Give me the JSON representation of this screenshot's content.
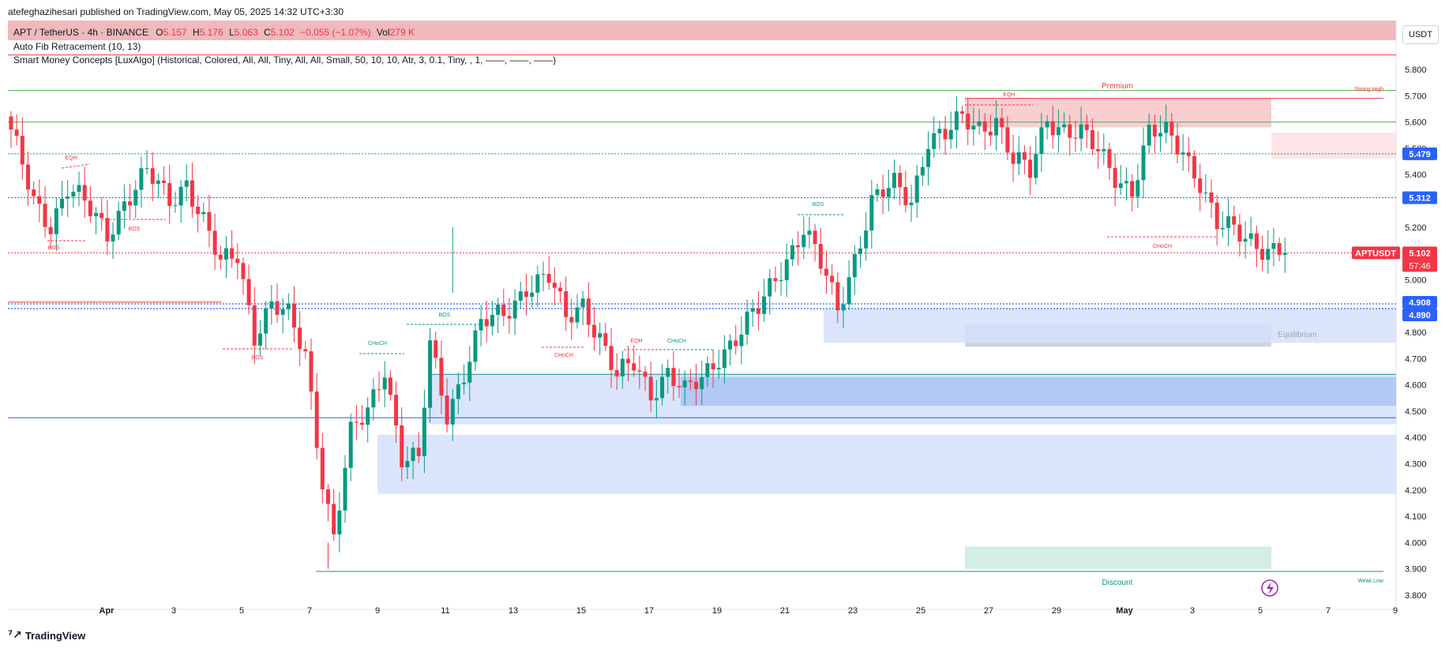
{
  "header": {
    "publish_line": "atefeghazihesari published on TradingView.com, May 05, 2025 14:32 UTC+3:30",
    "symbol_line": "APT / TetherUS · 4h · BINANCE",
    "ohlc": {
      "o_label": "O",
      "o": "5.157",
      "h_label": "H",
      "h": "5.176",
      "l_label": "L",
      "l": "5.063",
      "c_label": "C",
      "c": "5.102",
      "change": "−0.055 (−1.07%)",
      "vol_label": "Vol",
      "vol": "279 K"
    },
    "indicator_1": "Auto Fib Retracement (10, 13)",
    "indicator_2": "Smart Money Concepts [LuxAlgo] (Historical, Colored, All, All, Tiny, All, All, Small, 50, 10, 10, Atr, 3, 0.1, Tiny, , 1, ——, ——, ——)"
  },
  "price_axis": {
    "unit": "USDT",
    "ticks": [
      "5.800",
      "5.700",
      "5.600",
      "5.500",
      "5.400",
      "5.300",
      "5.200",
      "5.100",
      "5.000",
      "4.900",
      "4.800",
      "4.700",
      "4.600",
      "4.500",
      "4.400",
      "4.300",
      "4.200",
      "4.100",
      "4.000",
      "3.900",
      "3.800"
    ],
    "tags": [
      {
        "text": "5.479",
        "price": 5.479,
        "color": "#2962ff"
      },
      {
        "text": "5.312",
        "price": 5.312,
        "color": "#2962ff"
      },
      {
        "text": "4.908",
        "price": 4.908,
        "color": "#2962ff"
      },
      {
        "text": "4.890",
        "price": 4.89,
        "color": "#2962ff"
      }
    ],
    "last_price": {
      "symbol": "APTUSDT",
      "price_text": "5.102",
      "countdown": "57:46",
      "color": "#f23645"
    }
  },
  "time_axis": {
    "labels": [
      "Apr",
      "3",
      "5",
      "7",
      "9",
      "11",
      "13",
      "15",
      "17",
      "19",
      "21",
      "23",
      "25",
      "27",
      "29",
      "May",
      "3",
      "5",
      "7",
      "9"
    ]
  },
  "annotations": {
    "premium": "Premium",
    "equilibrium": "Equilibrium",
    "discount": "Discount",
    "strong_high": "Strong High",
    "weak_low": "Weak Low",
    "eqh": "EQH",
    "bos": "BOS",
    "choch": "CHoCH"
  },
  "colors": {
    "bull": "#089981",
    "bear": "#f23645",
    "blue": "#2962ff",
    "premium_zone": "#f7c5c9",
    "discount_zone": "#b2dfd6",
    "order_block": "#aac4f5"
  },
  "footer": {
    "brand": "TradingView"
  },
  "chart_data": {
    "type": "candlestick",
    "symbol": "APT / TetherUS",
    "timeframe": "4h",
    "exchange": "BINANCE",
    "ylim": [
      3.78,
      5.86
    ],
    "anchors_close": [
      [
        0,
        5.55
      ],
      [
        4,
        5.3
      ],
      [
        7,
        5.22
      ],
      [
        10,
        5.35
      ],
      [
        13,
        5.28
      ],
      [
        17,
        5.18
      ],
      [
        20,
        5.3
      ],
      [
        24,
        5.4
      ],
      [
        28,
        5.3
      ],
      [
        31,
        5.38
      ],
      [
        34,
        5.22
      ],
      [
        37,
        5.05
      ],
      [
        40,
        5.1
      ],
      [
        43,
        4.8
      ],
      [
        46,
        4.9
      ],
      [
        49,
        4.85
      ],
      [
        52,
        4.72
      ],
      [
        55,
        4.25
      ],
      [
        57,
        4.02
      ],
      [
        60,
        4.4
      ],
      [
        63,
        4.5
      ],
      [
        66,
        4.68
      ],
      [
        69,
        4.32
      ],
      [
        72,
        4.3
      ],
      [
        74,
        4.75
      ],
      [
        77,
        4.5
      ],
      [
        80,
        4.65
      ],
      [
        83,
        4.82
      ],
      [
        87,
        4.87
      ],
      [
        91,
        4.98
      ],
      [
        95,
        5.0
      ],
      [
        98,
        4.85
      ],
      [
        101,
        4.92
      ],
      [
        104,
        4.78
      ],
      [
        107,
        4.62
      ],
      [
        110,
        4.68
      ],
      [
        113,
        4.58
      ],
      [
        116,
        4.65
      ],
      [
        119,
        4.56
      ],
      [
        122,
        4.62
      ],
      [
        125,
        4.72
      ],
      [
        128,
        4.78
      ],
      [
        132,
        4.88
      ],
      [
        136,
        5.05
      ],
      [
        140,
        5.2
      ],
      [
        142,
        5.1
      ],
      [
        144,
        5.0
      ],
      [
        146,
        4.88
      ],
      [
        148,
        5.02
      ],
      [
        152,
        5.3
      ],
      [
        156,
        5.35
      ],
      [
        159,
        5.3
      ],
      [
        162,
        5.55
      ],
      [
        165,
        5.55
      ],
      [
        168,
        5.6
      ],
      [
        171,
        5.58
      ],
      [
        174,
        5.62
      ],
      [
        177,
        5.45
      ],
      [
        180,
        5.4
      ],
      [
        183,
        5.62
      ],
      [
        186,
        5.58
      ],
      [
        189,
        5.55
      ],
      [
        192,
        5.48
      ],
      [
        195,
        5.4
      ],
      [
        198,
        5.35
      ],
      [
        201,
        5.55
      ],
      [
        204,
        5.55
      ],
      [
        207,
        5.5
      ],
      [
        210,
        5.38
      ],
      [
        213,
        5.2
      ],
      [
        216,
        5.18
      ],
      [
        219,
        5.16
      ],
      [
        222,
        5.12
      ],
      [
        225,
        5.102
      ]
    ],
    "horizontal_lines": [
      {
        "price": 5.72,
        "color": "#4caf50"
      },
      {
        "price": 5.6,
        "color": "#4caf50"
      },
      {
        "price": 5.479,
        "color": "#089981",
        "style": "dotted"
      },
      {
        "price": 5.312,
        "color": "#2962ff",
        "style": "dotted"
      },
      {
        "price": 5.102,
        "color": "#f23645",
        "style": "dotted"
      },
      {
        "price": 4.908,
        "color": "#2962ff",
        "style": "dotted"
      },
      {
        "price": 4.89,
        "color": "#2962ff",
        "style": "dotted"
      },
      {
        "price": 4.475,
        "color": "#2962ff"
      },
      {
        "price": 3.89,
        "color": "#089981"
      },
      {
        "price": 5.855,
        "color": "#f23645"
      }
    ],
    "zones": [
      {
        "name": "premium",
        "from": 5.58,
        "to": 5.69,
        "color": "#f7c5c9"
      },
      {
        "name": "premium-ext",
        "from": 5.46,
        "to": 5.56,
        "color": "#fbe0e2"
      },
      {
        "name": "equilibrium",
        "from": 4.745,
        "to": 4.83,
        "color": "#c9ccd4"
      },
      {
        "name": "discount",
        "from": 3.9,
        "to": 3.985,
        "color": "#cbeae3"
      },
      {
        "name": "ob-1",
        "from": 4.76,
        "to": 4.89,
        "color": "#d4e1fb"
      },
      {
        "name": "ob-2",
        "from": 4.45,
        "to": 4.64,
        "color": "#d4e1fb"
      },
      {
        "name": "ob-3",
        "from": 4.52,
        "to": 4.63,
        "color": "#aac4f5"
      },
      {
        "name": "ob-4",
        "from": 4.185,
        "to": 4.41,
        "color": "#d4e1fb"
      }
    ]
  }
}
